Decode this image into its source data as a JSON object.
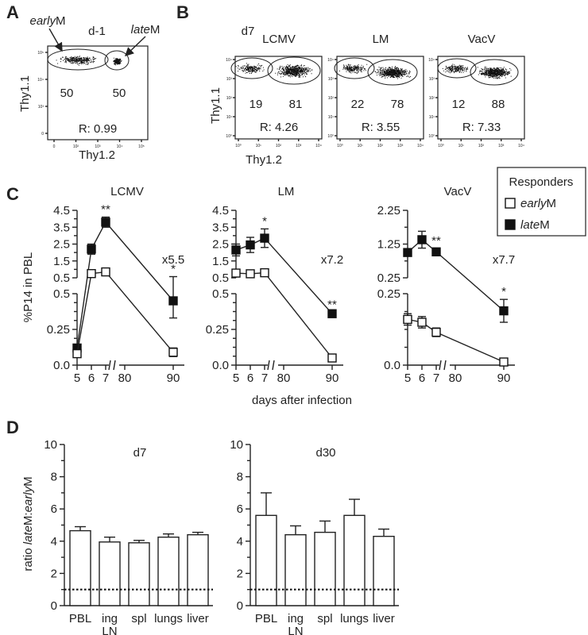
{
  "panels": {
    "a": "A",
    "b": "B",
    "c": "C",
    "d": "D"
  },
  "flow_a": {
    "timepoint": "d-1",
    "gate_labels": [
      {
        "pre": "early",
        "post": "M"
      },
      {
        "pre": "late",
        "post": "M"
      }
    ],
    "percents": [
      "50",
      "50"
    ],
    "ratio": "R: 0.99",
    "ylabel": "Thy1.1",
    "xlabel": "Thy1.2",
    "ticks_x": [
      "0",
      "10²",
      "10³",
      "10⁴",
      "10⁵"
    ],
    "ticks_y": [
      "10⁵",
      "10⁴",
      "10³",
      "0"
    ]
  },
  "flow_b": {
    "timepoint": "d7",
    "ylabel": "Thy1.1",
    "xlabel": "Thy1.2",
    "ticks_x": [
      "10⁰",
      "10¹",
      "10²",
      "10³",
      "10⁴"
    ],
    "ticks_y": [
      "10⁴",
      "10³",
      "10²",
      "10¹",
      "10⁰"
    ],
    "plots": [
      {
        "title": "LCMV",
        "percents": [
          "19",
          "81"
        ],
        "ratio": "R: 4.26"
      },
      {
        "title": "LM",
        "percents": [
          "22",
          "78"
        ],
        "ratio": "R: 3.55"
      },
      {
        "title": "VacV",
        "percents": [
          "12",
          "88"
        ],
        "ratio": "R: 7.33"
      }
    ]
  },
  "legend": {
    "title": "Responders",
    "items": [
      {
        "pre": "early",
        "post": "M",
        "fill": "#ffffff"
      },
      {
        "pre": "late",
        "post": "M",
        "fill": "#111111"
      }
    ]
  },
  "ylabel_c": "%P14 in PBL",
  "xlabel_c": "days after infection",
  "ylabel_d": {
    "pre": "ratio ",
    "late": "late",
    "mid": "M:",
    "early": "early",
    "post": "M"
  },
  "chart_data": [
    {
      "type": "line",
      "title": "LCMV",
      "x": [
        5,
        6,
        7,
        90
      ],
      "x_ticks": [
        "5",
        "6",
        "7",
        "80",
        "90"
      ],
      "y_ticks_upper": [
        "4.5",
        "3.5",
        "2.5",
        "1.5",
        "0.5"
      ],
      "y_ticks_lower": [
        "0.5",
        "0.25",
        "0.0"
      ],
      "ylim_upper": [
        0.5,
        4.5
      ],
      "ylim_lower": [
        0,
        0.5
      ],
      "series": [
        {
          "name": "lateM",
          "values": [
            0.12,
            2.2,
            3.8,
            0.45
          ],
          "err": [
            0.02,
            0.3,
            0.3,
            0.12
          ]
        },
        {
          "name": "earlyM",
          "values": [
            0.08,
            0.75,
            0.85,
            0.09
          ],
          "err": [
            0.01,
            0.05,
            0.05,
            0.03
          ]
        }
      ],
      "significance": [
        "",
        "",
        "**",
        "*"
      ],
      "fold_change": "x5.5"
    },
    {
      "type": "line",
      "title": "LM",
      "x": [
        5,
        6,
        7,
        90
      ],
      "x_ticks": [
        "5",
        "6",
        "7",
        "80",
        "90"
      ],
      "y_ticks_upper": [
        "4.5",
        "3.5",
        "2.5",
        "1.5",
        "0.5"
      ],
      "y_ticks_lower": [
        "0.5",
        "0.25",
        "0.0"
      ],
      "ylim_upper": [
        0.5,
        4.5
      ],
      "ylim_lower": [
        0,
        0.5
      ],
      "series": [
        {
          "name": "lateM",
          "values": [
            2.15,
            2.45,
            2.85,
            0.36
          ],
          "err": [
            0.35,
            0.45,
            0.55,
            0.01
          ]
        },
        {
          "name": "earlyM",
          "values": [
            0.78,
            0.74,
            0.8,
            0.05
          ],
          "err": [
            0.03,
            0.03,
            0.03,
            0.01
          ]
        }
      ],
      "significance": [
        "",
        "",
        "*",
        "**"
      ],
      "fold_change": "x7.2"
    },
    {
      "type": "line",
      "title": "VacV",
      "x": [
        5,
        6,
        7,
        90
      ],
      "x_ticks": [
        "5",
        "6",
        "7",
        "80",
        "90"
      ],
      "y_ticks_upper": [
        "2.25",
        "1.25",
        "0.25"
      ],
      "y_ticks_lower": [
        "0.25",
        "0.0"
      ],
      "ylim_upper": [
        0.25,
        2.25
      ],
      "ylim_lower": [
        0,
        0.25
      ],
      "series": [
        {
          "name": "lateM",
          "values": [
            1.0,
            1.38,
            1.02,
            0.19
          ],
          "err": [
            0.02,
            0.25,
            0.1,
            0.04
          ]
        },
        {
          "name": "earlyM",
          "values": [
            0.16,
            0.15,
            0.115,
            0.011
          ],
          "err": [
            0.02,
            0.02,
            0.015,
            0.002
          ]
        }
      ],
      "significance": [
        "",
        "",
        "**",
        "*"
      ],
      "fold_change": "x7.7"
    },
    {
      "type": "bar",
      "title": "d7",
      "categories": [
        "PBL",
        "ing\nLN",
        "spl",
        "lungs",
        "liver"
      ],
      "values": [
        4.65,
        3.95,
        3.9,
        4.25,
        4.4
      ],
      "err": [
        0.25,
        0.3,
        0.15,
        0.2,
        0.15
      ],
      "ylim": [
        0,
        10
      ],
      "y_ticks": [
        "0",
        "2",
        "4",
        "6",
        "8",
        "10"
      ],
      "reference_line": 1
    },
    {
      "type": "bar",
      "title": "d30",
      "categories": [
        "PBL",
        "ing\nLN",
        "spl",
        "lungs",
        "liver"
      ],
      "values": [
        5.6,
        4.4,
        4.55,
        5.6,
        4.3
      ],
      "err": [
        1.4,
        0.55,
        0.7,
        1.0,
        0.45
      ],
      "ylim": [
        0,
        10
      ],
      "y_ticks": [
        "0",
        "2",
        "4",
        "6",
        "8",
        "10"
      ],
      "reference_line": 1
    }
  ]
}
